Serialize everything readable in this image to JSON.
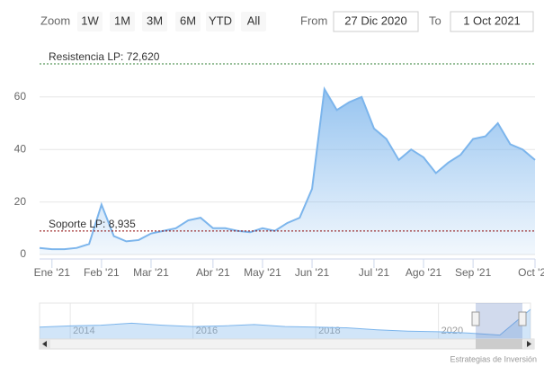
{
  "chart_data": {
    "type": "area",
    "range_selector": {
      "zoom_label": "Zoom",
      "buttons": [
        "1W",
        "1M",
        "3M",
        "6M",
        "YTD",
        "All"
      ],
      "from_label": "From",
      "from_value": "27 Dic 2020",
      "to_label": "To",
      "to_value": "1 Oct 2021"
    },
    "categories": [
      null,
      "Ene '21",
      null,
      null,
      null,
      "Feb '21",
      null,
      null,
      null,
      "Mar '21",
      null,
      null,
      null,
      null,
      "Abr '21",
      null,
      null,
      null,
      "May '21",
      null,
      null,
      null,
      "Jun '21",
      null,
      null,
      null,
      null,
      "Jul '21",
      null,
      null,
      null,
      "Ago '21",
      null,
      null,
      null,
      "Sep '21",
      null,
      null,
      null,
      null,
      "Oct '21"
    ],
    "series": [
      {
        "color": "#7cb5ec",
        "values": [
          2.5,
          2,
          2,
          2.5,
          4,
          19,
          7,
          5,
          5.5,
          8,
          9,
          10,
          13,
          14,
          10,
          10,
          9,
          8.5,
          10,
          9,
          12,
          14,
          25,
          63,
          55,
          58,
          60,
          48,
          44,
          36,
          40,
          37,
          31,
          35,
          38,
          44,
          45,
          50,
          42,
          40,
          36
        ]
      }
    ],
    "ylim": [
      0,
      80
    ],
    "yticks": [
      0,
      20,
      40,
      60
    ],
    "grid": true,
    "plot_lines": [
      {
        "value": 72.62,
        "label": "Resistencia LP: 72,620",
        "color": "#2e7d32"
      },
      {
        "value": 8.935,
        "label": "Soporte LP: 8,935",
        "color": "#8b0000"
      }
    ],
    "navigator": {
      "categories": [
        null,
        "2014",
        null,
        null,
        null,
        "2016",
        null,
        null,
        null,
        "2018",
        null,
        null,
        null,
        "2020",
        null,
        null,
        null
      ],
      "values": [
        18,
        20,
        21,
        24,
        21,
        19,
        20,
        22,
        19,
        18,
        17,
        14,
        12,
        11,
        9,
        6,
        45
      ]
    },
    "credits": "Estrategias de Inversión"
  }
}
